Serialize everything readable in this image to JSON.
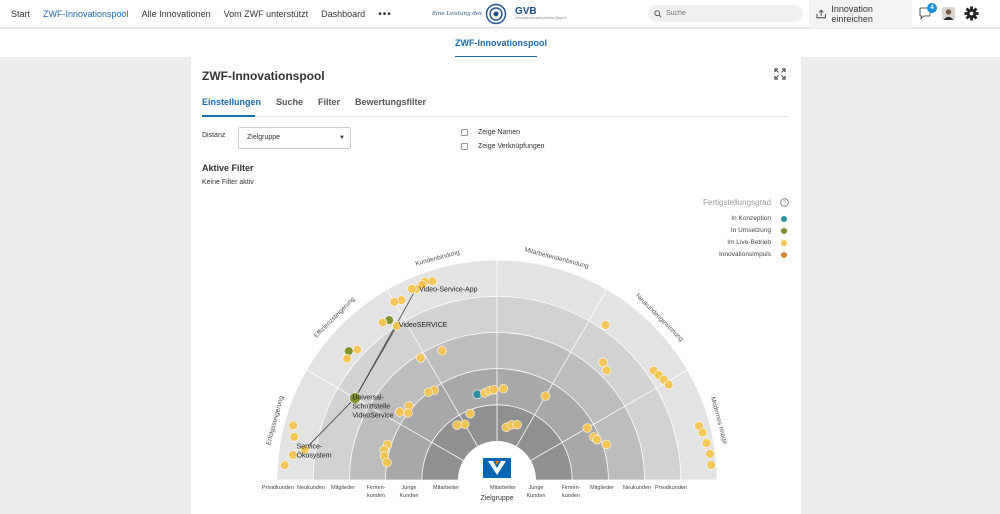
{
  "nav": {
    "items": [
      "Start",
      "ZWF-Innovationspool",
      "Alle Innovationen",
      "Vom ZWF unterstützt",
      "Dashboard"
    ],
    "more": "•••"
  },
  "logo": {
    "tagline": "Eine Leistung des",
    "org": "GVB",
    "org_sub": "Genossenschaftsverband Bayern"
  },
  "search": {
    "placeholder": "Suche"
  },
  "submit_label": "Innovation einreichen",
  "notifications": "4",
  "subheader_title": "ZWF-Innovationspool",
  "card": {
    "title": "ZWF-Innovationspool",
    "tabs": [
      "Einstellungen",
      "Suche",
      "Filter",
      "Bewertungsfilter"
    ],
    "distanz_label": "Distanz",
    "distanz_value": "Zielgruppe",
    "checkbox_names": "Zeige Namen",
    "checkbox_links": "Zeige Verknüpfungen",
    "active_filter_title": "Aktive Filter",
    "no_filter": "Keine Filter aktiv"
  },
  "legend": {
    "title": "Fertigstellungsgrad",
    "items": [
      {
        "label": "In Konzeption",
        "color": "#2b8fa0"
      },
      {
        "label": "In Umsetzung",
        "color": "#7c8f2a"
      },
      {
        "label": "Im Live-Betrieb",
        "color": "#f5c451"
      },
      {
        "label": "Innovationsimpuls",
        "color": "#d98a2a"
      }
    ]
  },
  "colors": {
    "accent": "#1d6aab",
    "vr_blue": "#0066b3",
    "vr_orange": "#f07c00"
  },
  "chart_data": {
    "type": "scatter",
    "title": "",
    "sectors": [
      "Erfolgssteigerung",
      "Effizienzsteigerung",
      "Kundenbindung",
      "Mitarbeitendenbindung",
      "Neukundengewinnung",
      "Modernes Image"
    ],
    "x_categories": [
      "Privatkunden",
      "Neukunden",
      "Mitglieder",
      "Firmen-\nkunden",
      "Junge\nKunden",
      "Mitarbeiter",
      "Mitarbeiter",
      "Junge\nKunden",
      "Firmen-\nkunden",
      "Mitglieder",
      "Neukunden",
      "Privatkunden"
    ],
    "xlabel": "Zielgruppe",
    "rings": 5,
    "labels": [
      {
        "text": "Video-Service-App",
        "angle": 113,
        "ring": 4.7
      },
      {
        "text": "VideoSERVICE",
        "angle": 123,
        "ring": 4.1
      },
      {
        "text": "Universal-\nSchnittstelle\nVideoService",
        "angle": 150,
        "ring": 3.6
      },
      {
        "text": "Service-\nÖkosystem",
        "angle": 170,
        "ring": 4.6
      }
    ],
    "links": [
      [
        113,
        4.65,
        150,
        3.45
      ],
      [
        123,
        4.0,
        150,
        3.45
      ],
      [
        150,
        3.45,
        171,
        4.3
      ]
    ],
    "points": [
      {
        "angle": 108,
        "ring": 4.7,
        "status": "live"
      },
      {
        "angle": 110,
        "ring": 4.75,
        "status": "live"
      },
      {
        "angle": 111,
        "ring": 4.7,
        "status": "live"
      },
      {
        "angle": 113,
        "ring": 4.65,
        "status": "live"
      },
      {
        "angle": 114,
        "ring": 4.7,
        "status": "live"
      },
      {
        "angle": 118,
        "ring": 4.55,
        "status": "live"
      },
      {
        "angle": 120,
        "ring": 4.6,
        "status": "live"
      },
      {
        "angle": 123,
        "ring": 4.0,
        "status": "live"
      },
      {
        "angle": 124,
        "ring": 4.25,
        "status": "umsetzung"
      },
      {
        "angle": 126,
        "ring": 4.3,
        "status": "live"
      },
      {
        "angle": 137,
        "ring": 4.2,
        "status": "live"
      },
      {
        "angle": 139,
        "ring": 4.35,
        "status": "umsetzung"
      },
      {
        "angle": 141,
        "ring": 4.25,
        "status": "live"
      },
      {
        "angle": 150,
        "ring": 3.45,
        "status": "umsetzung"
      },
      {
        "angle": 165,
        "ring": 4.75,
        "status": "live"
      },
      {
        "angle": 168,
        "ring": 4.65,
        "status": "live"
      },
      {
        "angle": 171,
        "ring": 4.3,
        "status": "live"
      },
      {
        "angle": 173,
        "ring": 4.6,
        "status": "live"
      },
      {
        "angle": 176,
        "ring": 4.8,
        "status": "live"
      },
      {
        "angle": 122,
        "ring": 2.9,
        "status": "live"
      },
      {
        "angle": 113,
        "ring": 2.8,
        "status": "live"
      },
      {
        "angle": 140,
        "ring": 2.1,
        "status": "live"
      },
      {
        "angle": 143,
        "ring": 2.0,
        "status": "live"
      },
      {
        "angle": 145,
        "ring": 2.2,
        "status": "live"
      },
      {
        "angle": 125,
        "ring": 1.95,
        "status": "live"
      },
      {
        "angle": 128,
        "ring": 2.0,
        "status": "live"
      },
      {
        "angle": 162,
        "ring": 2.1,
        "status": "live"
      },
      {
        "angle": 165,
        "ring": 2.15,
        "status": "live"
      },
      {
        "angle": 168,
        "ring": 2.1,
        "status": "live"
      },
      {
        "angle": 171,
        "ring": 2.0,
        "status": "live"
      },
      {
        "angle": 120,
        "ring": 0.7,
        "status": "live"
      },
      {
        "angle": 126,
        "ring": 0.8,
        "status": "live"
      },
      {
        "angle": 112,
        "ring": 0.9,
        "status": "live"
      },
      {
        "angle": 103,
        "ring": 1.35,
        "status": "konzeption"
      },
      {
        "angle": 98,
        "ring": 1.35,
        "status": "live"
      },
      {
        "angle": 95,
        "ring": 1.4,
        "status": "live"
      },
      {
        "angle": 92,
        "ring": 1.42,
        "status": "live"
      },
      {
        "angle": 86,
        "ring": 1.45,
        "status": "live"
      },
      {
        "angle": 80,
        "ring": 0.4,
        "status": "live"
      },
      {
        "angle": 75,
        "ring": 0.5,
        "status": "live"
      },
      {
        "angle": 70,
        "ring": 0.55,
        "status": "live"
      },
      {
        "angle": 60,
        "ring": 1.6,
        "status": "live"
      },
      {
        "angle": 30,
        "ring": 1.8,
        "status": "live"
      },
      {
        "angle": 24,
        "ring": 1.85,
        "status": "live"
      },
      {
        "angle": 18,
        "ring": 2.1,
        "status": "live"
      },
      {
        "angle": 22,
        "ring": 1.9,
        "status": "live"
      },
      {
        "angle": 45,
        "ring": 3.2,
        "status": "live"
      },
      {
        "angle": 48,
        "ring": 3.3,
        "status": "live"
      },
      {
        "angle": 55,
        "ring": 4.15,
        "status": "live"
      },
      {
        "angle": 35,
        "ring": 4.2,
        "status": "live"
      },
      {
        "angle": 33,
        "ring": 4.25,
        "status": "live"
      },
      {
        "angle": 31,
        "ring": 4.3,
        "status": "live"
      },
      {
        "angle": 29,
        "ring": 4.35,
        "status": "live"
      },
      {
        "angle": 15,
        "ring": 4.7,
        "status": "live"
      },
      {
        "angle": 13,
        "ring": 4.75,
        "status": "live"
      },
      {
        "angle": 10,
        "ring": 4.8,
        "status": "live"
      },
      {
        "angle": 7,
        "ring": 4.85,
        "status": "live"
      },
      {
        "angle": 4,
        "ring": 4.85,
        "status": "live"
      }
    ]
  }
}
